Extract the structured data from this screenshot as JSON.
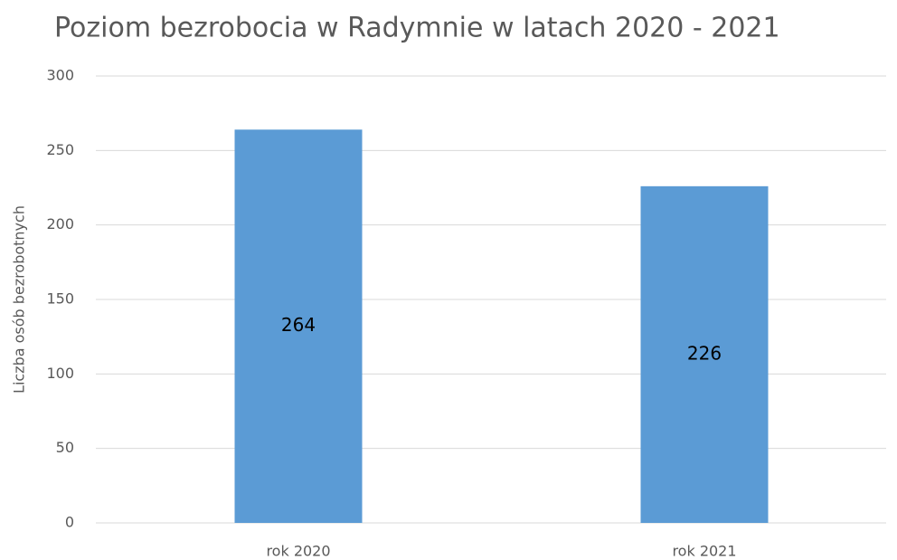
{
  "chart_data": {
    "type": "bar",
    "title": "Poziom bezrobocia w Radymnie w latach 2020 - 2021",
    "y_label": "Liczba osób bezrobotnych",
    "categories": [
      "rok 2020",
      "rok 2021"
    ],
    "values": [
      264,
      226
    ],
    "color": "#5b9bd5",
    "ylim": [
      0,
      300
    ],
    "yticks": [
      0,
      50,
      100,
      150,
      200,
      250,
      300
    ],
    "grid": true
  }
}
